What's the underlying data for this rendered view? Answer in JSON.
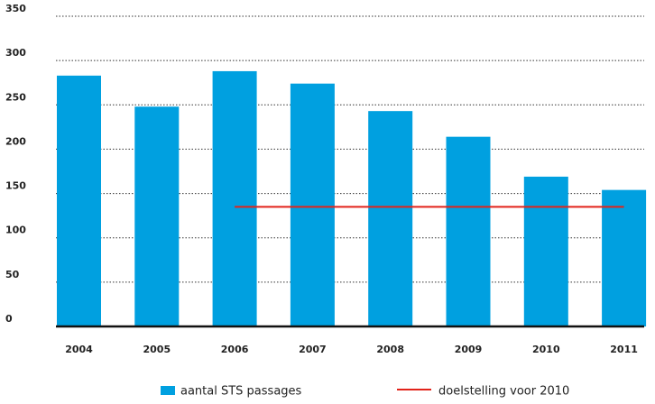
{
  "chart_data": {
    "type": "bar",
    "categories": [
      "2004",
      "2005",
      "2006",
      "2007",
      "2008",
      "2009",
      "2010",
      "2011"
    ],
    "series": [
      {
        "name": "aantal STS passages",
        "type": "bar",
        "color": "#00a0e0",
        "values": [
          283,
          248,
          288,
          274,
          243,
          214,
          169,
          154
        ]
      },
      {
        "name": "doelstelling voor 2010",
        "type": "line",
        "color": "#e2231a",
        "values": [
          null,
          null,
          135,
          135,
          135,
          135,
          135,
          135
        ]
      }
    ],
    "ylim": [
      0,
      350
    ],
    "yticks": [
      0,
      50,
      100,
      150,
      200,
      250,
      300,
      350
    ],
    "grid": true
  }
}
